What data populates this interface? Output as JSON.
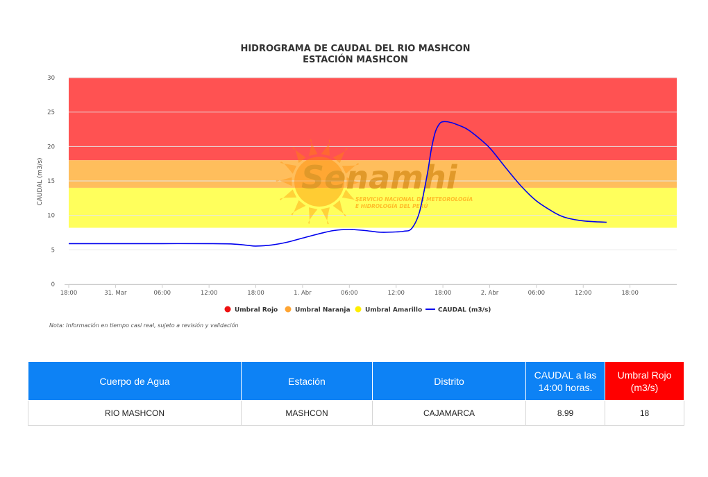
{
  "chart_data": {
    "type": "line",
    "title": "HIDROGRAMA DE CAUDAL DEL RIO MASHCON",
    "subtitle": "ESTACIÓN MASHCON",
    "ylabel": "CAUDAL (m3/s)",
    "xlabel": "",
    "ylim": [
      0,
      30
    ],
    "yticks": [
      0,
      5,
      10,
      15,
      20,
      25,
      30
    ],
    "xlim_hours": [
      0,
      78
    ],
    "xticks": [
      {
        "h": 0,
        "label": "18:00"
      },
      {
        "h": 6,
        "label": "31. Mar"
      },
      {
        "h": 12,
        "label": "06:00"
      },
      {
        "h": 18,
        "label": "12:00"
      },
      {
        "h": 24,
        "label": "18:00"
      },
      {
        "h": 30,
        "label": "1. Abr"
      },
      {
        "h": 36,
        "label": "06:00"
      },
      {
        "h": 42,
        "label": "12:00"
      },
      {
        "h": 48,
        "label": "18:00"
      },
      {
        "h": 54,
        "label": "2. Abr"
      },
      {
        "h": 60,
        "label": "06:00"
      },
      {
        "h": 66,
        "label": "12:00"
      },
      {
        "h": 72,
        "label": "18:00"
      }
    ],
    "bands": [
      {
        "name": "Umbral Rojo",
        "from": 18,
        "to": 30,
        "color": "#ff5252"
      },
      {
        "name": "Umbral Naranja",
        "from": 14,
        "to": 18,
        "color": "#ffbe5c"
      },
      {
        "name": "Umbral Amarillo",
        "from": 8.2,
        "to": 14,
        "color": "#ffff5c"
      }
    ],
    "series": [
      {
        "name": "CAUDAL (m3/s)",
        "color": "#0000ee",
        "x": [
          0,
          6,
          12,
          18,
          21,
          23,
          24,
          26,
          28,
          30,
          32,
          34,
          36,
          38,
          40,
          42,
          43,
          44,
          45,
          46,
          46.5,
          47,
          47.5,
          48,
          49,
          50,
          51,
          52,
          54,
          56,
          58,
          60,
          62,
          63,
          64,
          66,
          68,
          69
        ],
        "values": [
          5.9,
          5.9,
          5.9,
          5.9,
          5.85,
          5.65,
          5.55,
          5.7,
          6.1,
          6.7,
          7.3,
          7.8,
          7.95,
          7.8,
          7.55,
          7.6,
          7.7,
          8.1,
          10.5,
          16,
          19.5,
          22,
          23.2,
          23.6,
          23.5,
          23.1,
          22.6,
          21.8,
          19.8,
          17,
          14.3,
          12.1,
          10.6,
          10.0,
          9.6,
          9.2,
          9.05,
          9.0
        ]
      }
    ],
    "legend": {
      "position": "bottom",
      "items": [
        {
          "label": "Umbral Rojo",
          "color": "#ee1111",
          "symbol": "circle"
        },
        {
          "label": "Umbral Naranja",
          "color": "#ffa533",
          "symbol": "circle"
        },
        {
          "label": "Umbral Amarillo",
          "color": "#ffee00",
          "symbol": "circle"
        },
        {
          "label": "CAUDAL (m3/s)",
          "color": "#0000ee",
          "symbol": "line"
        }
      ]
    },
    "grid": true,
    "note": "Nota: Información en tiempo casi real, sujeto a revisión y validación"
  },
  "watermark": {
    "brand": "Senamhi",
    "line1": "SERVICIO NACIONAL DE METEOROLOGÍA",
    "line2": "E HIDROLOGÍA DEL PERÚ",
    "sun_color": "#ff8a00",
    "text_color": "#c97b00"
  },
  "table": {
    "headers": [
      {
        "label": "Cuerpo de Agua"
      },
      {
        "label": "Estación"
      },
      {
        "label": "Distrito"
      },
      {
        "label_line1": "CAUDAL a las",
        "label_line2": "14:00 horas."
      },
      {
        "label_line1": "Umbral Rojo",
        "label_line2": "(m3/s)"
      }
    ],
    "row": {
      "cuerpo": "RIO MASHCON",
      "estacion": "MASHCON",
      "distrito": "CAJAMARCA",
      "caudal": "8.99",
      "umbral": "18"
    }
  }
}
